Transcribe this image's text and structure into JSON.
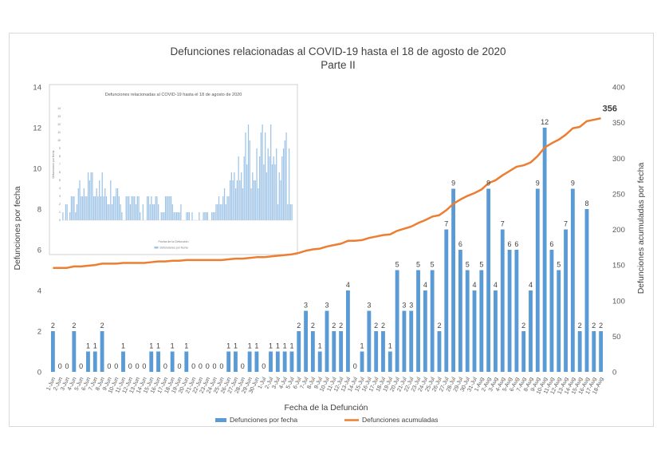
{
  "chart_data": {
    "type": "bar+line",
    "title": "Defunciones relacionadas al COVID-19 hasta el 18 de agosto de 2020",
    "subtitle": "Parte II",
    "xlabel": "Fecha de la Defunción",
    "ylabel_left": "Defunciones por fecha",
    "ylabel_right": "Defunciones acumuladas por fecha",
    "ylim_left": [
      0,
      14
    ],
    "ylim_right": [
      0,
      400
    ],
    "yticks_left": [
      "0",
      "2",
      "4",
      "6",
      "8",
      "10",
      "12",
      "14"
    ],
    "yticks_right": [
      "0",
      "50",
      "100",
      "150",
      "200",
      "250",
      "300",
      "350",
      "400"
    ],
    "grid": false,
    "legend_position": "bottom",
    "categories": [
      "1-Jun",
      "2-Jun",
      "3-Jun",
      "4-Jun",
      "5-Jun",
      "6-Jun",
      "7-Jun",
      "8-Jun",
      "9-Jun",
      "10-Jun",
      "11-Jun",
      "12-Jun",
      "13-Jun",
      "14-Jun",
      "15-Jun",
      "16-Jun",
      "17-Jun",
      "18-Jun",
      "19-Jun",
      "20-Jun",
      "21-Jun",
      "22-Jun",
      "23-Jun",
      "24-Jun",
      "25-Jun",
      "26-Jun",
      "27-Jun",
      "28-Jun",
      "29-Jun",
      "30-Jun",
      "1-Jul",
      "2-Jul",
      "3-Jul",
      "4-Jul",
      "5-Jul",
      "6-Jul",
      "7-Jul",
      "8-Jul",
      "9-Jul",
      "10-Jul",
      "11-Jul",
      "12-Jul",
      "13-Jul",
      "14-Jul",
      "15-Jul",
      "16-Jul",
      "17-Jul",
      "18-Jul",
      "19-Jul",
      "20-Jul",
      "21-Jul",
      "22-Jul",
      "23-Jul",
      "24-Jul",
      "25-Jul",
      "26-Jul",
      "27-Jul",
      "28-Jul",
      "29-Jul",
      "30-Jul",
      "31-Jul",
      "1-Aug",
      "2-Aug",
      "3-Aug",
      "4-Aug",
      "5-Aug",
      "6-Aug",
      "7-Aug",
      "8-Aug",
      "9-Aug",
      "10-Aug",
      "11-Aug",
      "12-Aug",
      "13-Aug",
      "14-Aug",
      "15-Aug",
      "16-Aug",
      "17-Aug",
      "18-Aug"
    ],
    "series": [
      {
        "name": "Defunciones por fecha",
        "type": "bar",
        "axis": "left",
        "color": "#5b9bd5",
        "values": [
          2,
          0,
          0,
          2,
          0,
          1,
          1,
          2,
          0,
          0,
          1,
          0,
          0,
          0,
          1,
          1,
          0,
          1,
          0,
          1,
          0,
          0,
          0,
          0,
          0,
          1,
          1,
          0,
          1,
          1,
          0,
          1,
          1,
          1,
          1,
          2,
          3,
          2,
          1,
          3,
          2,
          2,
          4,
          0,
          1,
          3,
          2,
          2,
          1,
          5,
          3,
          3,
          5,
          4,
          5,
          2,
          7,
          9,
          6,
          5,
          4,
          5,
          9,
          4,
          7,
          6,
          6,
          2,
          4,
          9,
          12,
          6,
          5,
          7,
          9,
          2,
          8,
          2,
          2
        ]
      },
      {
        "name": "Defunciones acumuladas",
        "type": "line",
        "axis": "right",
        "color": "#ed7d31",
        "values": [
          146,
          146,
          146,
          148,
          148,
          149,
          150,
          152,
          152,
          152,
          153,
          153,
          153,
          153,
          154,
          155,
          155,
          156,
          156,
          157,
          157,
          157,
          157,
          157,
          157,
          158,
          159,
          159,
          160,
          161,
          161,
          162,
          163,
          164,
          165,
          167,
          170,
          172,
          173,
          176,
          178,
          180,
          184,
          184,
          185,
          188,
          190,
          192,
          193,
          198,
          201,
          204,
          209,
          213,
          218,
          220,
          227,
          236,
          242,
          247,
          251,
          256,
          265,
          269,
          276,
          282,
          288,
          290,
          294,
          303,
          315,
          321,
          326,
          333,
          342,
          344,
          352,
          354,
          356
        ]
      }
    ],
    "annotations": [
      {
        "text": "356",
        "target": "last point of Defunciones acumuladas"
      }
    ],
    "inset": {
      "title": "Defunciones relacionadas al COVID-19 hasta el 18 de agosto de 2020",
      "ylabel": "Defunciones por fecha",
      "xlabel": "Fecha de la Defunción",
      "legend": "Defunciones por fecha",
      "yticks": [
        "0",
        "1",
        "2",
        "3",
        "4",
        "5",
        "6",
        "7",
        "8",
        "9",
        "10",
        "11",
        "12",
        "13",
        "14"
      ],
      "values": [
        1,
        0,
        2,
        2,
        0,
        1,
        3,
        3,
        3,
        1,
        2,
        4,
        5,
        3,
        3,
        4,
        3,
        3,
        6,
        5,
        6,
        6,
        3,
        3,
        4,
        3,
        5,
        3,
        6,
        3,
        4,
        3,
        2,
        2,
        5,
        2,
        3,
        3,
        4,
        4,
        3,
        2,
        1,
        0,
        0,
        3,
        3,
        3,
        2,
        3,
        3,
        3,
        2,
        3,
        3,
        1,
        0,
        2,
        0,
        0,
        3,
        3,
        2,
        3,
        2,
        2,
        3,
        3,
        2,
        0,
        1,
        1,
        1,
        3,
        3,
        3,
        3,
        3,
        2,
        1,
        1,
        1,
        1,
        1,
        2,
        0,
        0,
        0,
        1,
        1,
        1,
        0,
        1,
        0,
        0,
        0,
        0,
        1,
        0,
        0,
        1,
        1,
        1,
        1,
        0,
        0,
        1,
        1,
        1,
        2,
        2,
        3,
        2,
        2,
        3,
        4,
        2,
        3,
        3,
        5,
        6,
        5,
        6,
        4,
        5,
        8,
        5,
        6,
        4,
        8,
        11,
        7,
        12,
        10,
        4,
        6,
        5,
        5,
        9,
        4,
        8,
        11,
        12,
        7,
        11,
        6,
        9,
        8,
        12,
        7,
        8,
        7,
        9,
        2,
        6,
        5,
        8,
        9,
        10,
        11,
        2,
        9,
        2,
        2
      ],
      "ylim": [
        0,
        14
      ],
      "color": "#9dc3e6"
    }
  }
}
